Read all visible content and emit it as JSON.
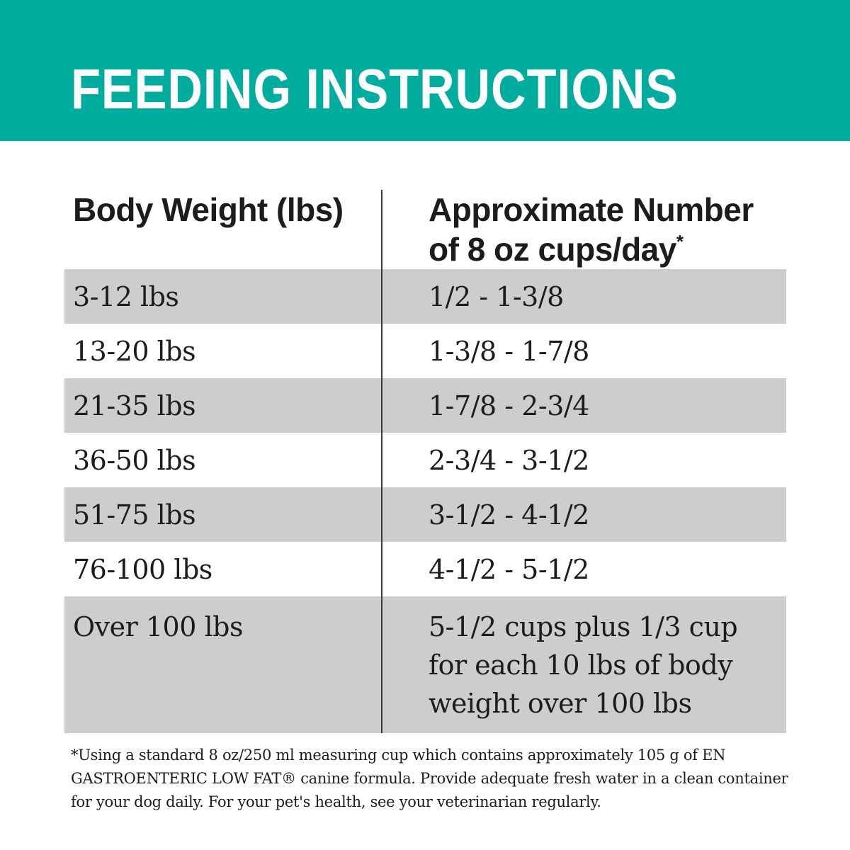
{
  "header": {
    "title": "FEEDING INSTRUCTIONS"
  },
  "table": {
    "columns": [
      {
        "label": "Body Weight (lbs)"
      },
      {
        "label": "Approximate Number of 8 oz cups/day",
        "line1": "Approximate Number",
        "line2": "of 8 oz cups/day",
        "footnote_marker": "*"
      }
    ],
    "rows": [
      {
        "weight": "3-12 lbs",
        "cups": "1/2 - 1-3/8",
        "shaded": true
      },
      {
        "weight": "13-20 lbs",
        "cups": "1-3/8 - 1-7/8",
        "shaded": false
      },
      {
        "weight": "21-35 lbs",
        "cups": "1-7/8 - 2-3/4",
        "shaded": true
      },
      {
        "weight": "36-50 lbs",
        "cups": "2-3/4 - 3-1/2",
        "shaded": false
      },
      {
        "weight": "51-75 lbs",
        "cups": "3-1/2 - 4-1/2",
        "shaded": true
      },
      {
        "weight": "76-100 lbs",
        "cups": "4-1/2 - 5-1/2",
        "shaded": false
      },
      {
        "weight": "Over 100 lbs",
        "cups": "5-1/2 cups plus 1/3 cup for each 10 lbs of body weight over 100 lbs",
        "shaded": true
      }
    ]
  },
  "footnote": "*Using a standard 8 oz/250 ml measuring cup which contains approximately 105 g of EN GASTROENTERIC LOW FAT® canine formula. Provide adequate fresh water in a clean container for your dog daily. For your pet's health, see your veterinarian regularly.",
  "colors": {
    "header_teal": "#00AC9D",
    "row_shaded_gray": "#CDCDCD",
    "text_black": "#1C1C1C",
    "title_white": "#FFFFFF"
  }
}
